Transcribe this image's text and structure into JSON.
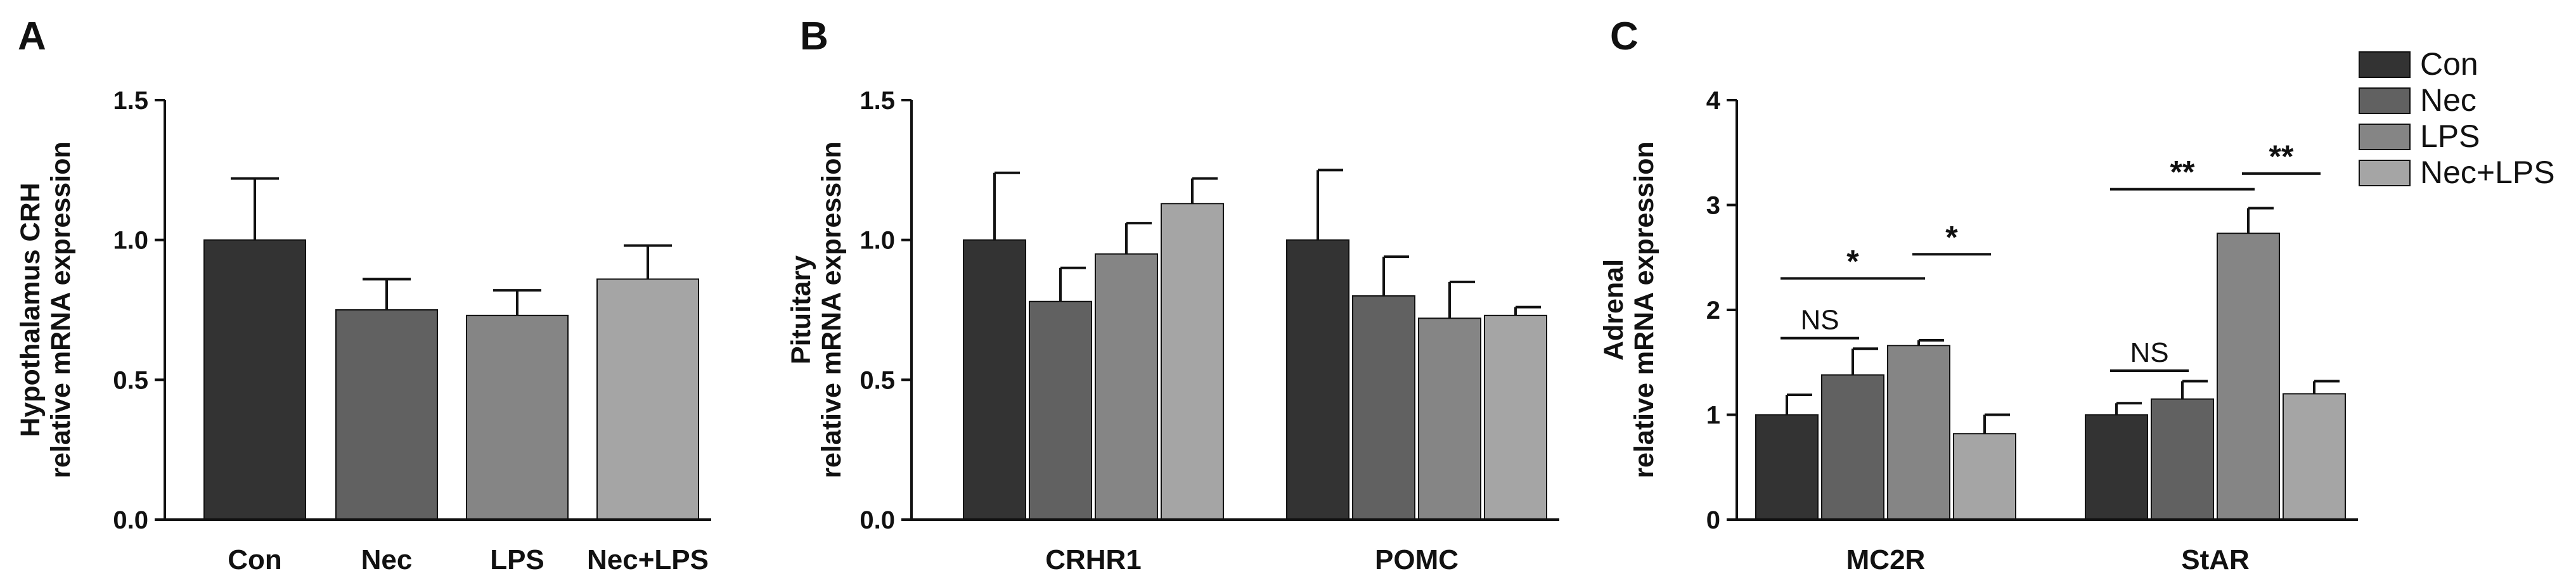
{
  "chart_data": [
    {
      "panel": "A",
      "type": "bar",
      "ylabel": [
        "Hypothalamus CRH",
        "relative mRNA expression"
      ],
      "ylim": [
        0,
        1.5
      ],
      "yticks": [
        "0.0",
        "0.5",
        "1.0",
        "1.5"
      ],
      "categories": [
        "Con",
        "Nec",
        "LPS",
        "Nec+LPS"
      ],
      "series": [
        {
          "values": [
            1.0,
            0.75,
            0.73,
            0.86
          ],
          "errors": [
            0.22,
            0.11,
            0.09,
            0.12
          ],
          "colors": [
            "#333333",
            "#616161",
            "#858585",
            "#a5a5a5"
          ]
        }
      ]
    },
    {
      "panel": "B",
      "type": "bar",
      "ylabel": [
        "Pituitary",
        "relative mRNA expression"
      ],
      "ylim": [
        0,
        1.5
      ],
      "yticks": [
        "0.0",
        "0.5",
        "1.0",
        "1.5"
      ],
      "categories": [
        "CRHR1",
        "POMC"
      ],
      "series": [
        {
          "name": "Con",
          "values": [
            1.0,
            1.0
          ],
          "errors": [
            0.24,
            0.25
          ]
        },
        {
          "name": "Nec",
          "values": [
            0.78,
            0.8
          ],
          "errors": [
            0.12,
            0.14
          ]
        },
        {
          "name": "LPS",
          "values": [
            0.95,
            0.72
          ],
          "errors": [
            0.11,
            0.13
          ]
        },
        {
          "name": "Nec+LPS",
          "values": [
            1.13,
            0.73
          ],
          "errors": [
            0.09,
            0.03
          ]
        }
      ]
    },
    {
      "panel": "C",
      "type": "bar",
      "ylabel": [
        "Adrenal",
        "relative mRNA expression"
      ],
      "ylim": [
        0,
        4
      ],
      "yticks": [
        "0",
        "1",
        "2",
        "3",
        "4"
      ],
      "categories": [
        "MC2R",
        "StAR"
      ],
      "series": [
        {
          "name": "Con",
          "values": [
            1.0,
            1.0
          ],
          "errors": [
            0.19,
            0.11
          ]
        },
        {
          "name": "Nec",
          "values": [
            1.38,
            1.15
          ],
          "errors": [
            0.25,
            0.17
          ]
        },
        {
          "name": "LPS",
          "values": [
            1.66,
            2.73
          ],
          "errors": [
            0.05,
            0.24
          ]
        },
        {
          "name": "Nec+LPS",
          "values": [
            0.82,
            1.2
          ],
          "errors": [
            0.18,
            0.12
          ]
        }
      ],
      "annotations": [
        {
          "text": "NS",
          "category": 0,
          "from": 0,
          "to": 1,
          "y": 1.73
        },
        {
          "text": "*",
          "category": 0,
          "from": 0,
          "to": 2,
          "y": 2.3
        },
        {
          "text": "*",
          "category": 0,
          "from": 2,
          "to": 3,
          "y": 2.53
        },
        {
          "text": "NS",
          "category": 1,
          "from": 0,
          "to": 1,
          "y": 1.42
        },
        {
          "text": "**",
          "category": 1,
          "from": 0,
          "to": 2,
          "y": 3.15
        },
        {
          "text": "**",
          "category": 1,
          "from": 2,
          "to": 3,
          "y": 3.3
        }
      ]
    }
  ],
  "legend": [
    {
      "label": "Con",
      "color": "#333333"
    },
    {
      "label": "Nec",
      "color": "#616161"
    },
    {
      "label": "LPS",
      "color": "#858585"
    },
    {
      "label": "Nec+LPS",
      "color": "#a5a5a5"
    }
  ],
  "series_colors": [
    "#333333",
    "#616161",
    "#858585",
    "#a5a5a5"
  ]
}
